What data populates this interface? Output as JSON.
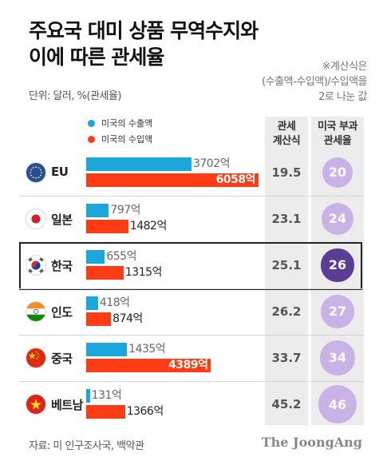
{
  "title_line1": "주요국 대미 상품 무역수지와",
  "title_line2": "이에 따른 관세율",
  "unit": "단위: 달러, %(관세율)",
  "note_line1": "※계산식은",
  "note_line2": "(수출액-수입액)/수입액을",
  "note_line3": "2로 나눈 값",
  "colors": {
    "export": "#1ca7dc",
    "import": "#ff3c16",
    "tariff_light": "#c9b3e6",
    "tariff_highlight": "#5b3d93",
    "column_bg": "#ececec"
  },
  "source": "자료: 미 인구조사국, 백악관",
  "brand": "The JoongAng",
  "chart_data": {
    "type": "bar",
    "title": "주요국 대미 상품 무역수지와 이에 따른 관세율",
    "unit": "단위: 달러, %(관세율)",
    "legend": [
      "미국의 수출액",
      "미국의 수입액"
    ],
    "column_headers": {
      "rate": [
        "관세",
        "계산식"
      ],
      "tariff": [
        "미국 부과",
        "관세율"
      ]
    },
    "highlight": "한국",
    "categories": [
      "EU",
      "일본",
      "한국",
      "인도",
      "중국",
      "베트남"
    ],
    "flags": [
      "eu-flag-icon",
      "japan-flag-icon",
      "korea-flag-icon",
      "india-flag-icon",
      "china-flag-icon",
      "vietnam-flag-icon"
    ],
    "series": [
      {
        "name": "미국의 수출액",
        "values": [
          3702,
          797,
          655,
          418,
          1435,
          131
        ],
        "labels": [
          "3702억",
          "797억",
          "655억",
          "418억",
          "1435억",
          "131억"
        ]
      },
      {
        "name": "미국의 수입액",
        "values": [
          6058,
          1482,
          1315,
          874,
          4389,
          1366
        ],
        "labels": [
          "6058억",
          "1482억",
          "1315억",
          "874억",
          "4389억",
          "1366억"
        ]
      }
    ],
    "calc_rate": [
      "19.5",
      "23.1",
      "25.1",
      "26.2",
      "33.7",
      "45.2"
    ],
    "tariff_rate": [
      20,
      24,
      26,
      27,
      34,
      46
    ]
  }
}
